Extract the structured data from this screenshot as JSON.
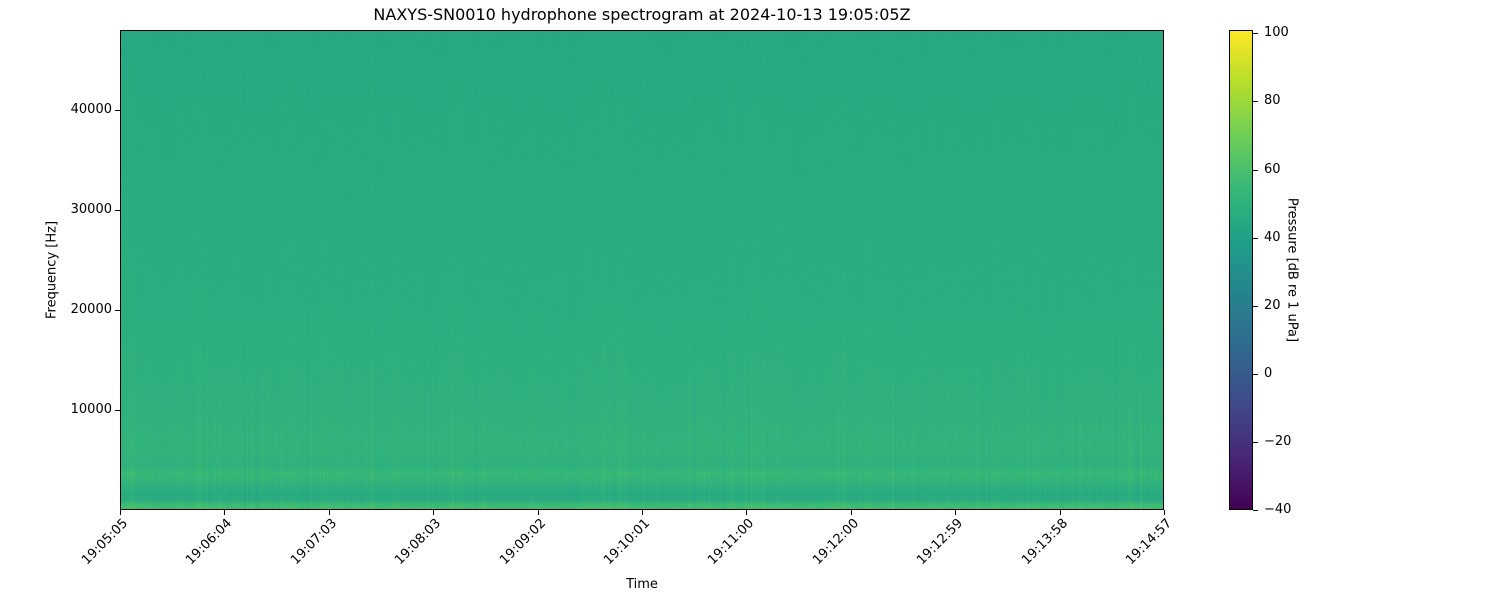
{
  "chart_data": {
    "type": "heatmap",
    "title": "NAXYS-SN0010 hydrophone spectrogram at 2024-10-13 19:05:05Z",
    "xlabel": "Time",
    "ylabel": "Frequency [Hz]",
    "xlim": [
      "19:05:05",
      "19:14:57"
    ],
    "ylim": [
      0,
      48000
    ],
    "xticks": [
      "19:05:05",
      "19:06:04",
      "19:07:03",
      "19:08:03",
      "19:09:02",
      "19:10:01",
      "19:11:00",
      "19:12:00",
      "19:12:59",
      "19:13:58",
      "19:14:57"
    ],
    "yticks": [
      10000,
      20000,
      30000,
      40000
    ],
    "colormap": "viridis",
    "colorbar": {
      "label": "Pressure [dB re 1 uPa]",
      "range": [
        -40,
        101
      ],
      "ticks": [
        -40,
        -20,
        0,
        20,
        40,
        60,
        80,
        100
      ]
    },
    "frequency_profile_hz": [
      0,
      500,
      1000,
      1500,
      2500,
      3500,
      4500,
      6000,
      8000,
      10000,
      15000,
      20000,
      30000,
      40000,
      48000
    ],
    "frequency_profile_mean_db": [
      58,
      56,
      47,
      46,
      50,
      55,
      50,
      52,
      51,
      50,
      49,
      48,
      47,
      46,
      45
    ]
  }
}
